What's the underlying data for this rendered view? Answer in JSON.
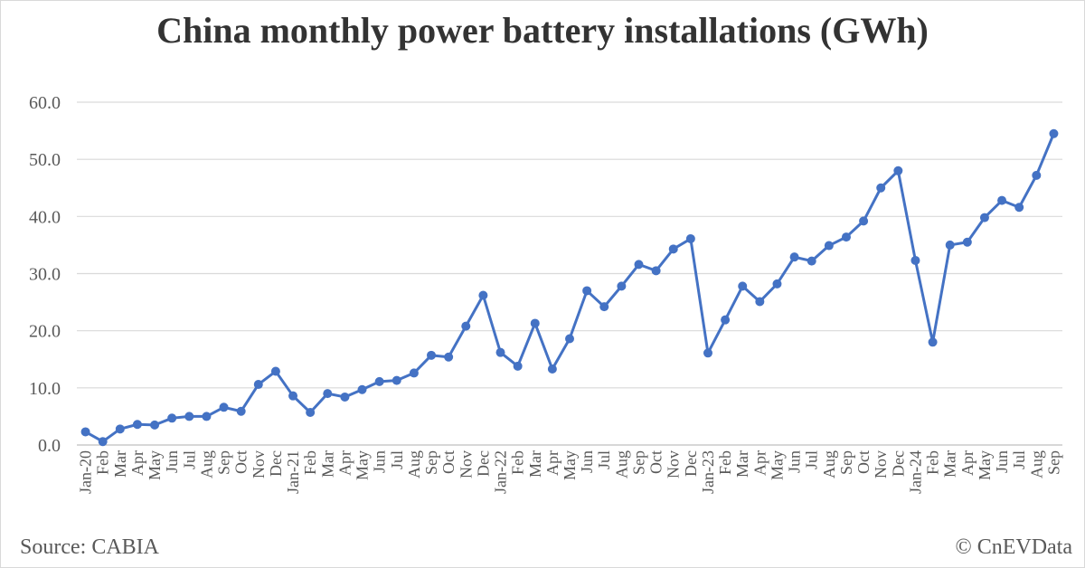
{
  "chart_data": {
    "type": "line",
    "title": "China monthly power battery installations (GWh)",
    "xlabel": "",
    "ylabel": "",
    "ylim": [
      0,
      60
    ],
    "yticks": [
      "0.0",
      "10.0",
      "20.0",
      "30.0",
      "40.0",
      "50.0",
      "60.0"
    ],
    "grid": true,
    "legend": "none",
    "color": "#4472c4",
    "categories": [
      "Jan-20",
      "Feb",
      "Mar",
      "Apr",
      "May",
      "Jun",
      "Jul",
      "Aug",
      "Sep",
      "Oct",
      "Nov",
      "Dec",
      "Jan-21",
      "Feb",
      "Mar",
      "Apr",
      "May",
      "Jun",
      "Jul",
      "Aug",
      "Sep",
      "Oct",
      "Nov",
      "Dec",
      "Jan-22",
      "Feb",
      "Mar",
      "Apr",
      "May",
      "Jun",
      "Jul",
      "Aug",
      "Sep",
      "Oct",
      "Nov",
      "Dec",
      "Jan-23",
      "Feb",
      "Mar",
      "Apr",
      "May",
      "Jun",
      "Jul",
      "Aug",
      "Sep",
      "Oct",
      "Nov",
      "Dec",
      "Jan-24",
      "Feb",
      "Mar",
      "Apr",
      "May",
      "Jun",
      "Jul",
      "Aug",
      "Sep"
    ],
    "series": [
      {
        "values": [
          2.3,
          0.6,
          2.8,
          3.6,
          3.5,
          4.7,
          5.0,
          5.0,
          6.6,
          5.9,
          10.6,
          12.9,
          8.6,
          5.7,
          9.0,
          8.4,
          9.7,
          11.1,
          11.3,
          12.6,
          15.7,
          15.4,
          20.8,
          26.2,
          16.2,
          13.8,
          21.3,
          13.3,
          18.6,
          27.0,
          24.2,
          27.8,
          31.6,
          30.5,
          34.3,
          36.1,
          16.1,
          21.9,
          27.8,
          25.1,
          28.2,
          32.9,
          32.2,
          34.9,
          36.4,
          39.2,
          45.0,
          48.0,
          32.3,
          18.0,
          35.0,
          35.5,
          39.8,
          42.8,
          41.6,
          47.2,
          54.5
        ]
      }
    ]
  },
  "footer": {
    "source": "Source: CABIA",
    "copyright": "© CnEVData"
  }
}
